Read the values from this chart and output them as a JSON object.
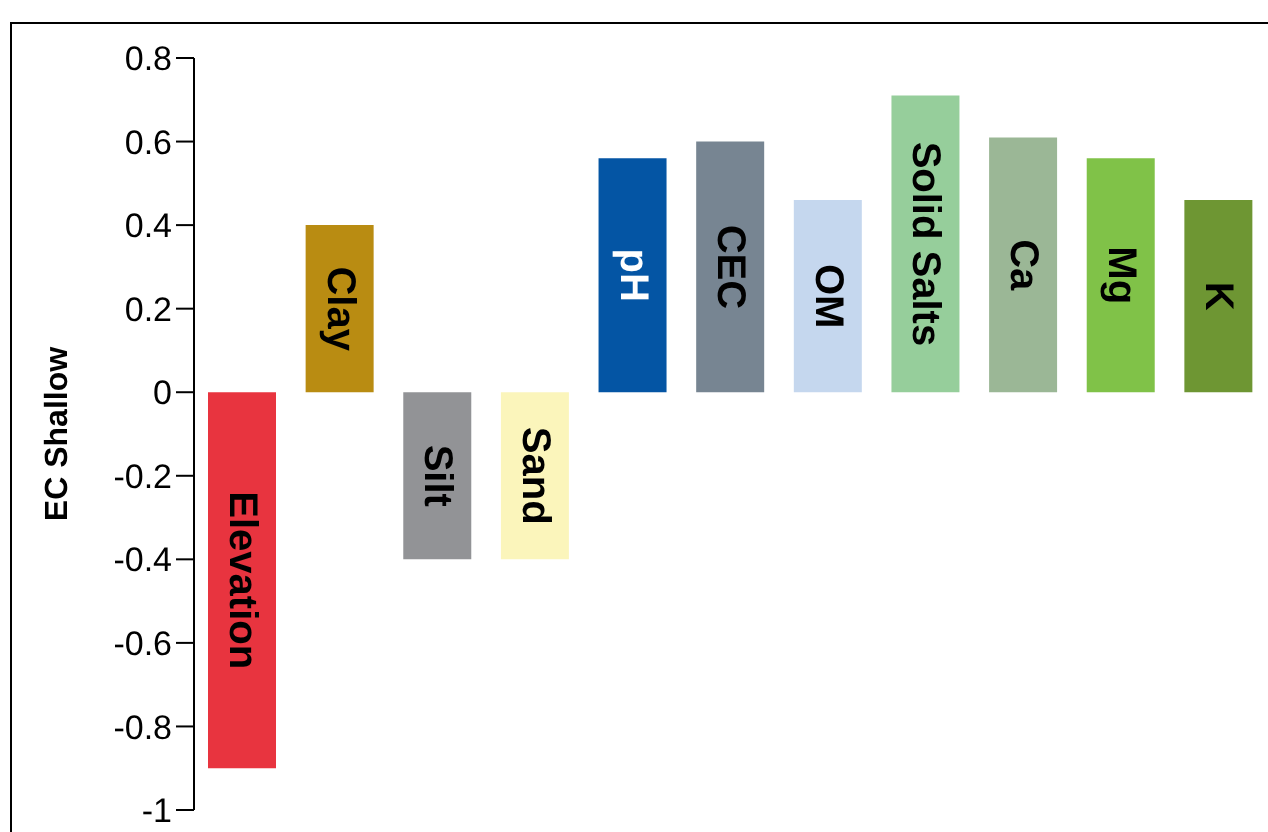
{
  "chart_data": {
    "type": "bar",
    "ylabel": "EC Shallow",
    "categories": [
      "Elevation",
      "Clay",
      "Silt",
      "Sand",
      "pH",
      "CEC",
      "OM",
      "Solid Salts",
      "Ca",
      "Mg",
      "K"
    ],
    "values": [
      -0.9,
      0.4,
      -0.4,
      -0.4,
      0.56,
      0.6,
      0.46,
      0.71,
      0.61,
      0.56,
      0.46
    ],
    "colors": [
      "#e8343f",
      "#b98c12",
      "#929396",
      "#fbf5bb",
      "#0455a4",
      "#778592",
      "#c5d7ee",
      "#96ce9b",
      "#9bb796",
      "#80c248",
      "#6e9633"
    ],
    "ylim": [
      -1,
      0.8
    ],
    "yticks": [
      -1,
      -0.8,
      -0.6,
      -0.4,
      -0.2,
      0,
      0.2,
      0.4,
      0.6,
      0.8
    ],
    "grid": false,
    "legend": false,
    "tick_labels": "y"
  }
}
